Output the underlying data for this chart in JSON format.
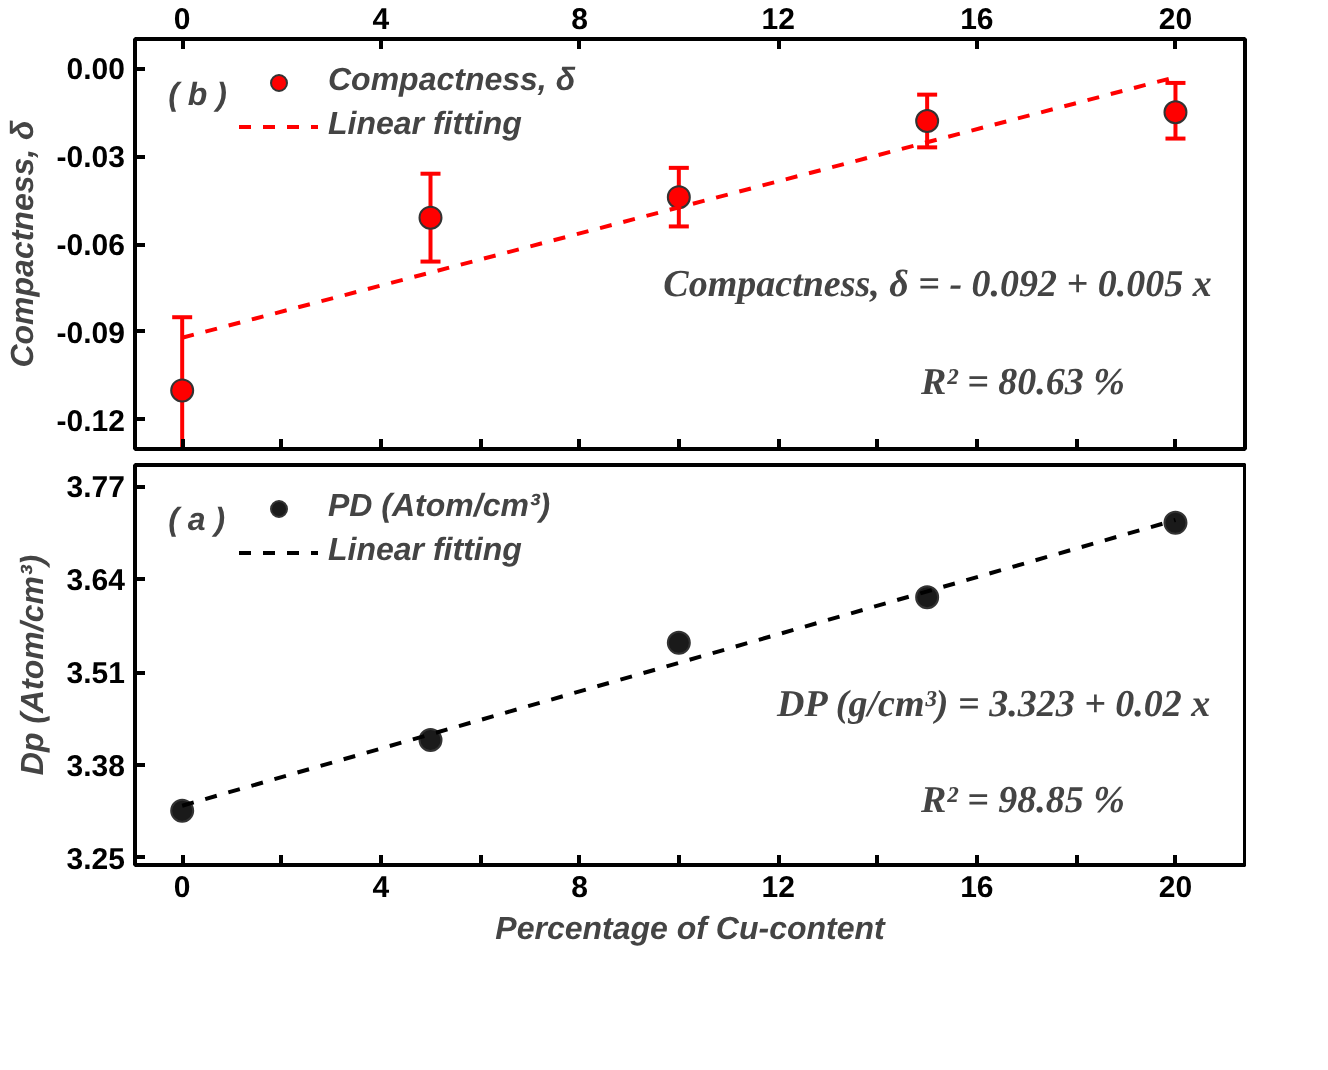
{
  "chart_data": [
    {
      "type": "scatter",
      "ylabel": "Compactness, δ",
      "legend": "top left",
      "tick_labels": "y",
      "x2lim": [
        -0.95,
        21.4
      ],
      "x2ticks": [
        0,
        4,
        8,
        12,
        16,
        20
      ],
      "xlim": [
        -0.95,
        21.4
      ],
      "xticks": [
        0,
        {
          "value": 2,
          "label": null
        },
        4,
        {
          "value": 6,
          "label": null
        },
        8,
        {
          "value": 10,
          "label": null
        },
        12,
        {
          "value": 14,
          "label": null
        },
        16,
        {
          "value": 18,
          "label": null
        },
        20
      ],
      "ylim": [
        -0.13,
        0.01
      ],
      "yticks": [
        {
          "value": 0,
          "label": "0.00"
        },
        -0.03,
        -0.06,
        -0.09,
        -0.12
      ],
      "series": [
        {
          "name": "Compactness, δ",
          "marker": "circle",
          "color": "#ff0000",
          "x": [
            0,
            5,
            10,
            15,
            20
          ],
          "values": [
            -0.11,
            -0.051,
            -0.044,
            -0.018,
            -0.015
          ],
          "errors": [
            [
              -0.13,
              -0.085
            ],
            [
              -0.066,
              -0.036
            ],
            [
              -0.054,
              -0.034
            ],
            [
              -0.027,
              -0.009
            ],
            [
              -0.024,
              -0.005
            ]
          ]
        },
        {
          "name": "Linear fitting",
          "type": "line",
          "line_style": "dashed",
          "color": "#ff0000",
          "x": [
            0,
            20
          ],
          "values": [
            -0.092,
            -0.003
          ]
        }
      ],
      "annotations": [
        "( b )",
        "Compactness, δ = - 0.092 + 0.005 x",
        "R² = 80.63 %"
      ]
    },
    {
      "type": "scatter",
      "ylabel": "Dp (Atom/cm³)",
      "xlabel": "Percentage of Cu-content",
      "legend": "top left",
      "xlim": [
        -0.95,
        21.4
      ],
      "xticks": [
        0,
        {
          "value": 2,
          "label": null
        },
        4,
        {
          "value": 6,
          "label": null
        },
        8,
        {
          "value": 10,
          "label": null
        },
        12,
        {
          "value": 14,
          "label": null
        },
        16,
        {
          "value": 18,
          "label": null
        },
        20
      ],
      "ylim": [
        3.24,
        3.8
      ],
      "yticks": [
        3.25,
        3.38,
        3.51,
        3.64,
        3.77
      ],
      "series": [
        {
          "name": "PD (Atom/cm³)",
          "marker": "circle",
          "color": "#1a1a1a",
          "x": [
            0,
            5,
            10,
            15,
            20
          ],
          "values": [
            3.316,
            3.415,
            3.551,
            3.615,
            3.719
          ]
        },
        {
          "name": "Linear fitting",
          "type": "line",
          "line_style": "dashed",
          "color": "#000000",
          "x": [
            0,
            20
          ],
          "values": [
            3.323,
            3.723
          ]
        }
      ],
      "annotations": [
        "( a )",
        "DP (g/cm³) = 3.323 + 0.02 x",
        "R² = 98.85 %"
      ]
    }
  ]
}
